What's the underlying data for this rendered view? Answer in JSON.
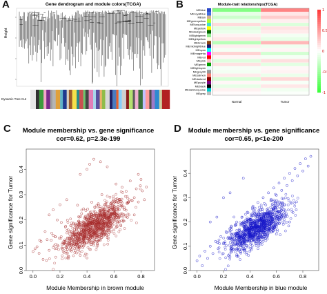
{
  "panels": {
    "A": {
      "letter": "A"
    },
    "B": {
      "letter": "B"
    },
    "C": {
      "letter": "C"
    },
    "D": {
      "letter": "D"
    }
  },
  "chart_data": [
    {
      "type": "other",
      "title": "Gene dendrogram and module colors(TCGA)",
      "ylabel": "Height",
      "color_bar_label": "Dynamic Tree Cut",
      "color_bar_colors": [
        "#e6e6e6",
        "#2f2f2f",
        "#3d9b3d",
        "#f4a6c8",
        "#7a2a8a",
        "#a0a0a0",
        "#b5b5b5",
        "#e0a03c",
        "#5fb3c7",
        "#1f3a8f",
        "#d9d0c0",
        "#9c5a2b",
        "#f5e04a",
        "#2a8a8a",
        "#c95151",
        "#6dc36d",
        "#454545",
        "#e27fb8",
        "#a9d6ea",
        "#5a4ea0",
        "#ebb26a",
        "#8fbc4a",
        "#d8d8d8",
        "#222266",
        "#4b7bbf",
        "#e95f2b",
        "#87cefa",
        "#cfcfcf",
        "#8b1a1a",
        "#b4e070",
        "#5c5c5c",
        "#f0b0d0",
        "#3a6f3a",
        "#c0c0ff",
        "#ff9c9c",
        "#4d4d4d",
        "#9e7ac8",
        "#2d8ad0",
        "#d0d0a0",
        "#b22222"
      ]
    },
    {
      "type": "heatmap",
      "title": "Module-trait relationships(TCGA)",
      "x": [
        "Normal",
        "Tumor"
      ],
      "modules": [
        "MEblue",
        "MEroyalblue",
        "MEtan",
        "MEgreenyellow",
        "MEturquoise",
        "MEyellow",
        "MEdarkgreen",
        "MElightgreen",
        "MElightyellow",
        "MEbrown",
        "MEmidnightblue",
        "MEcyan",
        "MEmagenta",
        "MEred",
        "MEpink",
        "MEgreen",
        "MElightcyan",
        "MEgrey60",
        "MEsalmon",
        "MEdarkred",
        "MEpurple",
        "MEblack",
        "MEdarkturquoise",
        "MEgrey"
      ],
      "module_colors": [
        "#2b47c8",
        "#3e6ae1",
        "#d2b48c",
        "#adff2f",
        "#40e0d0",
        "#ffff00",
        "#006400",
        "#90ee90",
        "#ffffe0",
        "#8b4513",
        "#191970",
        "#00ffff",
        "#ff00ff",
        "#ff0000",
        "#ffc0cb",
        "#00a000",
        "#e0ffff",
        "#999999",
        "#fa8072",
        "#8b0000",
        "#800080",
        "#000000",
        "#00ced1",
        "#bebebe"
      ],
      "values": [
        [
          -0.62,
          0.62
        ],
        [
          -0.12,
          0.12
        ],
        [
          -0.25,
          0.25
        ],
        [
          -0.08,
          0.08
        ],
        [
          0.18,
          -0.18
        ],
        [
          -0.14,
          0.14
        ],
        [
          -0.1,
          0.1
        ],
        [
          0.06,
          -0.06
        ],
        [
          0.12,
          -0.12
        ],
        [
          -0.35,
          0.35
        ],
        [
          0.08,
          -0.08
        ],
        [
          -0.05,
          0.05
        ],
        [
          0.22,
          -0.22
        ],
        [
          0.05,
          -0.05
        ],
        [
          -0.16,
          0.16
        ],
        [
          0.14,
          -0.14
        ],
        [
          -0.04,
          0.04
        ],
        [
          -0.06,
          0.06
        ],
        [
          0.1,
          -0.1
        ],
        [
          -0.2,
          0.2
        ],
        [
          0.04,
          -0.04
        ],
        [
          -0.12,
          0.12
        ],
        [
          0.07,
          -0.07
        ],
        [
          0.02,
          -0.02
        ]
      ],
      "colorbar_ticks": [
        "1",
        "0.5",
        "0",
        "-0.5",
        "-1"
      ],
      "zlim": [
        -1,
        1
      ]
    },
    {
      "type": "scatter",
      "title": "Module membership vs. gene significance",
      "subtitle": "cor=0.62, p=2.3e-199",
      "xlabel": "Module Membership in brown module",
      "ylabel": "Gene significance for Tumor",
      "xlim": [
        -0.05,
        0.9
      ],
      "ylim": [
        0,
        0.48
      ],
      "xticks": [
        "0.0",
        "0.2",
        "0.4",
        "0.6",
        "0.8"
      ],
      "yticks": [
        "0.0",
        "0.1",
        "0.2",
        "0.3",
        "0.4"
      ],
      "point_color": "#a52a2a",
      "points": [
        [
          0.0,
          0.075
        ],
        [
          0.015,
          0.086
        ],
        [
          0.03,
          0.094
        ],
        [
          0.045,
          0.068
        ],
        [
          0.06,
          0.115
        ],
        [
          0.075,
          0.044
        ],
        [
          0.09,
          0.154
        ],
        [
          0.105,
          0.122
        ],
        [
          0.12,
          0.08
        ],
        [
          0.135,
          0.12
        ],
        [
          0.15,
          0.139
        ],
        [
          0.165,
          0.133
        ],
        [
          0.18,
          0.2
        ],
        [
          0.195,
          0.128
        ],
        [
          0.21,
          0.19
        ],
        [
          0.225,
          0.108
        ],
        [
          0.24,
          0.172
        ],
        [
          0.255,
          0.199
        ],
        [
          0.27,
          0.145
        ],
        [
          0.285,
          0.13
        ],
        [
          0.3,
          0.187
        ],
        [
          0.315,
          0.184
        ],
        [
          0.33,
          0.258
        ],
        [
          0.345,
          0.17
        ],
        [
          0.36,
          0.225
        ],
        [
          0.375,
          0.244
        ],
        [
          0.39,
          0.159
        ],
        [
          0.405,
          0.243
        ],
        [
          0.42,
          0.21
        ],
        [
          0.435,
          0.27
        ],
        [
          0.45,
          0.225
        ],
        [
          0.465,
          0.218
        ],
        [
          0.48,
          0.252
        ],
        [
          0.495,
          0.22
        ],
        [
          0.51,
          0.3
        ],
        [
          0.525,
          0.24
        ],
        [
          0.54,
          0.262
        ],
        [
          0.555,
          0.23
        ],
        [
          0.57,
          0.29
        ],
        [
          0.585,
          0.268
        ],
        [
          0.6,
          0.26
        ],
        [
          0.615,
          0.342
        ],
        [
          0.63,
          0.254
        ],
        [
          0.645,
          0.28
        ],
        [
          0.66,
          0.329
        ],
        [
          0.675,
          0.25
        ],
        [
          0.69,
          0.313
        ],
        [
          0.705,
          0.27
        ],
        [
          0.72,
          0.354
        ],
        [
          0.735,
          0.276
        ],
        [
          0.75,
          0.288
        ],
        [
          0.765,
          0.323
        ],
        [
          0.78,
          0.271
        ],
        [
          0.795,
          0.335
        ],
        [
          0.81,
          0.315
        ],
        [
          0.825,
          0.28
        ],
        [
          0.84,
          0.33
        ],
        [
          0.3,
          0.1
        ],
        [
          0.35,
          0.06
        ],
        [
          0.4,
          0.05
        ],
        [
          0.45,
          0.1
        ],
        [
          0.5,
          0.12
        ],
        [
          0.55,
          0.13
        ],
        [
          0.6,
          0.16
        ],
        [
          0.65,
          0.18
        ],
        [
          0.2,
          0.26
        ],
        [
          0.25,
          0.28
        ],
        [
          0.35,
          0.38
        ],
        [
          0.4,
          0.4
        ],
        [
          0.42,
          0.42
        ],
        [
          0.45,
          0.44
        ],
        [
          0.5,
          0.43
        ],
        [
          0.55,
          0.41
        ],
        [
          0.1,
          0.04
        ],
        [
          0.05,
          0.12
        ],
        [
          0.12,
          0.22
        ],
        [
          0.15,
          0.24
        ],
        [
          0.7,
          0.21
        ],
        [
          0.75,
          0.22
        ],
        [
          0.78,
          0.38
        ],
        [
          0.8,
          0.36
        ]
      ]
    },
    {
      "type": "scatter",
      "title": "Module membership vs. gene significance",
      "subtitle": "cor=0.65, p<1e-200",
      "xlabel": "Module Membership in blue module",
      "ylabel": "Gene significance for Tumor",
      "xlim": [
        -0.05,
        0.92
      ],
      "ylim": [
        0,
        0.5
      ],
      "xticks": [
        "0.0",
        "0.2",
        "0.4",
        "0.6",
        "0.8"
      ],
      "yticks": [
        "0.0",
        "0.1",
        "0.2",
        "0.3",
        "0.4"
      ],
      "point_color": "#1515c8",
      "points": [
        [
          0.0,
          0.04
        ],
        [
          0.02,
          0.06
        ],
        [
          0.04,
          0.02
        ],
        [
          0.06,
          0.08
        ],
        [
          0.08,
          0.05
        ],
        [
          0.1,
          0.1
        ],
        [
          0.12,
          0.07
        ],
        [
          0.14,
          0.12
        ],
        [
          0.16,
          0.09
        ],
        [
          0.18,
          0.14
        ],
        [
          0.2,
          0.11
        ],
        [
          0.22,
          0.16
        ],
        [
          0.24,
          0.13
        ],
        [
          0.26,
          0.18
        ],
        [
          0.28,
          0.15
        ],
        [
          0.3,
          0.2
        ],
        [
          0.32,
          0.17
        ],
        [
          0.34,
          0.22
        ],
        [
          0.36,
          0.19
        ],
        [
          0.38,
          0.24
        ],
        [
          0.4,
          0.21
        ],
        [
          0.42,
          0.26
        ],
        [
          0.44,
          0.23
        ],
        [
          0.46,
          0.28
        ],
        [
          0.48,
          0.25
        ],
        [
          0.5,
          0.3
        ],
        [
          0.52,
          0.27
        ],
        [
          0.54,
          0.32
        ],
        [
          0.56,
          0.29
        ],
        [
          0.58,
          0.34
        ],
        [
          0.6,
          0.31
        ],
        [
          0.62,
          0.36
        ],
        [
          0.64,
          0.33
        ],
        [
          0.66,
          0.38
        ],
        [
          0.68,
          0.35
        ],
        [
          0.7,
          0.4
        ],
        [
          0.72,
          0.37
        ],
        [
          0.74,
          0.42
        ],
        [
          0.76,
          0.39
        ],
        [
          0.78,
          0.44
        ],
        [
          0.8,
          0.41
        ],
        [
          0.82,
          0.46
        ],
        [
          0.84,
          0.43
        ],
        [
          0.86,
          0.47
        ],
        [
          0.3,
          0.06
        ],
        [
          0.4,
          0.08
        ],
        [
          0.5,
          0.12
        ],
        [
          0.6,
          0.15
        ],
        [
          0.7,
          0.2
        ],
        [
          0.75,
          0.25
        ],
        [
          0.2,
          0.3
        ],
        [
          0.25,
          0.32
        ],
        [
          0.35,
          0.38
        ],
        [
          0.1,
          0.2
        ],
        [
          0.15,
          0.22
        ]
      ]
    }
  ]
}
